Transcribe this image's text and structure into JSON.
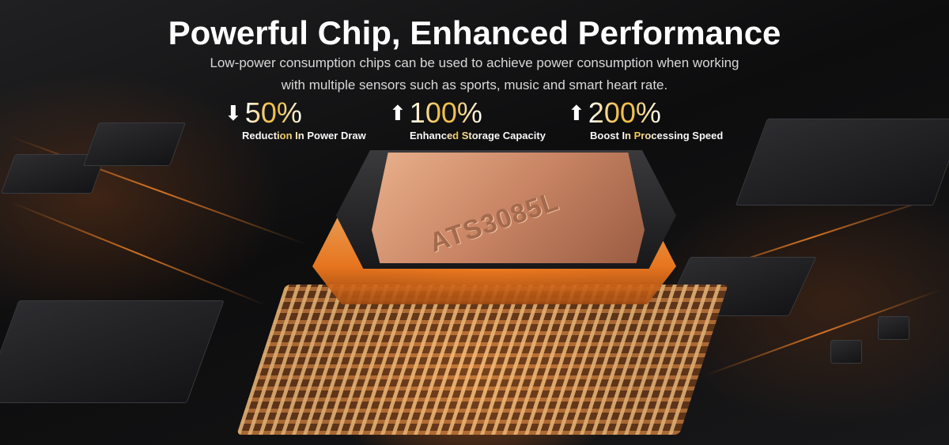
{
  "headline": "Powerful Chip, Enhanced Performance",
  "subtitle_lines": [
    "Low-power consumption chips can be used to achieve power consumption when working",
    "with multiple sensors such as sports, music and smart heart rate."
  ],
  "stats": [
    {
      "icon": "arrow-down-icon",
      "arrow": "⬇",
      "value": "50%",
      "label": "Reduction In Power Draw"
    },
    {
      "icon": "arrow-up-icon",
      "arrow": "⬆",
      "value": "100%",
      "label": "Enhanced Storage Capacity"
    },
    {
      "icon": "arrow-up-icon",
      "arrow": "⬆",
      "value": "200%",
      "label": "Boost In Processing Speed"
    }
  ],
  "chip_label": "ATS3085L",
  "colors": {
    "accent_gold": "#f1c04a",
    "glow_orange": "#ff8a2a"
  }
}
